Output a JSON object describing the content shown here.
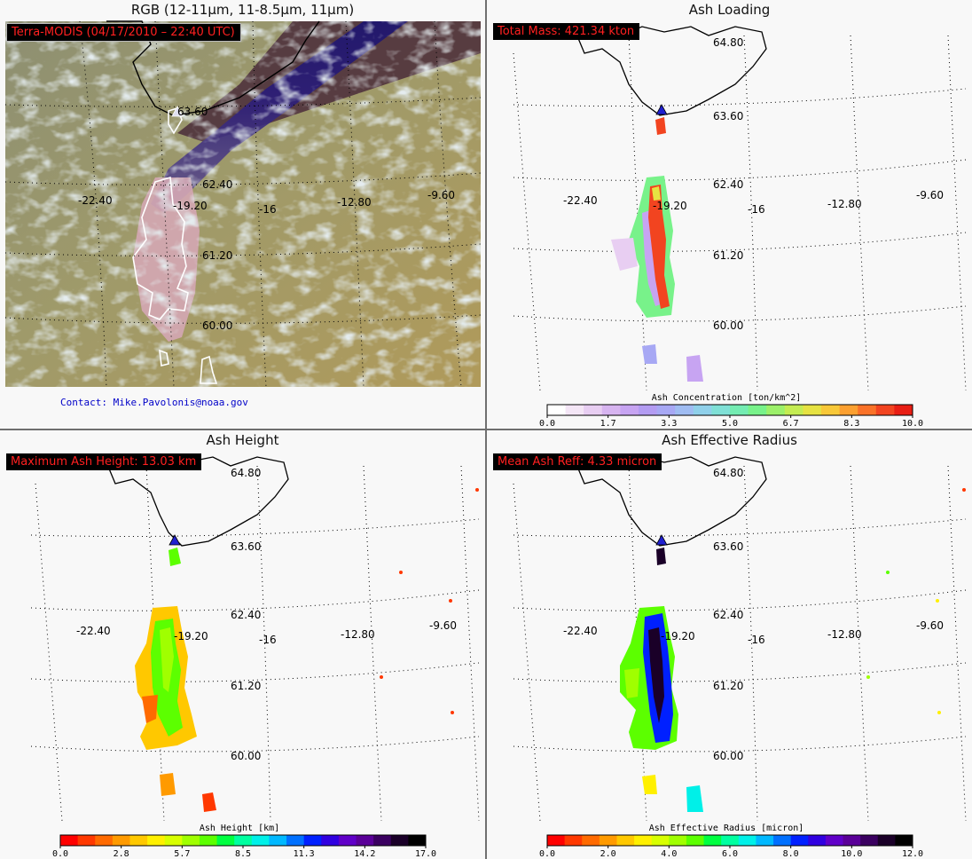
{
  "panels": {
    "rgb": {
      "title": "RGB (12-11µm, 11-8.5µm, 11µm)",
      "badge": "Terra-MODIS  (04/17/2010 – 22:40 UTC)",
      "contact": "Contact: Mike.Pavolonis@noaa.gov"
    },
    "load": {
      "title": "Ash Loading",
      "badge": "Total Mass: 421.34 kton",
      "colorbar": {
        "title": "Ash Concentration [ton/km^2]",
        "ticks": [
          "0.0",
          "1.7",
          "3.3",
          "5.0",
          "6.7",
          "8.3",
          "10.0"
        ],
        "colors": [
          "#ffffff",
          "#f4e6f6",
          "#e8cef2",
          "#d7b4f0",
          "#c7a4f2",
          "#b39cf2",
          "#a7a8f4",
          "#9fbcf2",
          "#8fd0ea",
          "#7fe0d6",
          "#74ecb2",
          "#78f28a",
          "#9cf06a",
          "#c4ec52",
          "#e6e242",
          "#f8c838",
          "#fca030",
          "#fa7228",
          "#f24420",
          "#e81e14"
        ]
      }
    },
    "height": {
      "title": "Ash Height",
      "badge": "Maximum Ash Height: 13.03 km",
      "colorbar": {
        "title": "Ash Height [km]",
        "ticks": [
          "0.0",
          "2.8",
          "5.7",
          "8.5",
          "11.3",
          "14.2",
          "17.0"
        ],
        "colors": [
          "#ff0000",
          "#ff3800",
          "#ff6a00",
          "#ff9a00",
          "#ffc800",
          "#fff000",
          "#d8ff00",
          "#a0ff00",
          "#5cff00",
          "#00ff40",
          "#00ffa0",
          "#00f0e8",
          "#00b8ff",
          "#0070ff",
          "#0020ff",
          "#3000e0",
          "#6000c8",
          "#5a0098",
          "#3a0060",
          "#1a0028",
          "#000000"
        ]
      }
    },
    "reff": {
      "title": "Ash Effective Radius",
      "badge": "Mean Ash Reff: 4.33 micron",
      "colorbar": {
        "title": "Ash Effective Radius [micron]",
        "ticks": [
          "0.0",
          "2.0",
          "4.0",
          "6.0",
          "8.0",
          "10.0",
          "12.0"
        ],
        "colors": [
          "#ff0000",
          "#ff3800",
          "#ff6a00",
          "#ff9a00",
          "#ffc800",
          "#fff000",
          "#d8ff00",
          "#a0ff00",
          "#5cff00",
          "#00ff40",
          "#00ffa0",
          "#00f0e8",
          "#00b8ff",
          "#0070ff",
          "#0020ff",
          "#3000e0",
          "#6000c8",
          "#5a0098",
          "#3a0060",
          "#1a0028",
          "#000000"
        ]
      }
    }
  },
  "grid_labels": {
    "lat": [
      "64.80",
      "63.60",
      "62.40",
      "61.20",
      "60.00"
    ],
    "lon": [
      "-22.40",
      "-19.20",
      "-16",
      "-12.80",
      "-9.60"
    ]
  },
  "colors": {
    "badge_bg": "#000000",
    "badge_text": "#ff2020",
    "vent_marker": "#2020d0"
  }
}
